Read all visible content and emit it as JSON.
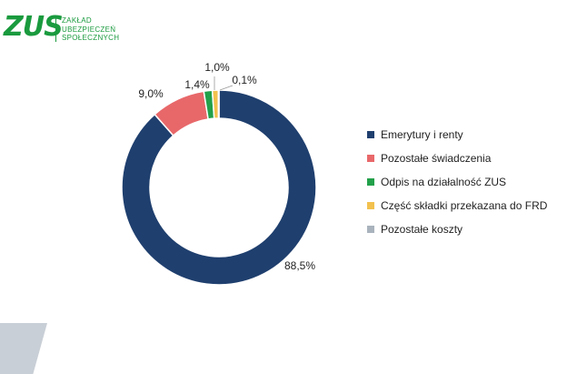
{
  "logo": {
    "mark": "ZUS",
    "lines": [
      "ZAKŁAD",
      "UBEZPIECZEŃ",
      "SPOŁECZNYCH"
    ],
    "color": "#1a9a3e"
  },
  "chart_data": {
    "type": "pie",
    "variant": "donut",
    "legend_position": "right",
    "categories": [
      "Emerytury i renty",
      "Pozostałe świadczenia",
      "Odpis na działalność ZUS",
      "Część składki przekazana do FRD",
      "Pozostałe koszty"
    ],
    "values": [
      88.5,
      9.0,
      1.4,
      1.0,
      0.1
    ],
    "labels": [
      "88,5%",
      "9,0%",
      "1,4%",
      "1,0%",
      "0,1%"
    ],
    "colors": [
      "#1f3f6e",
      "#e8686a",
      "#22a04a",
      "#f2c14e",
      "#a9b3bd"
    ]
  }
}
